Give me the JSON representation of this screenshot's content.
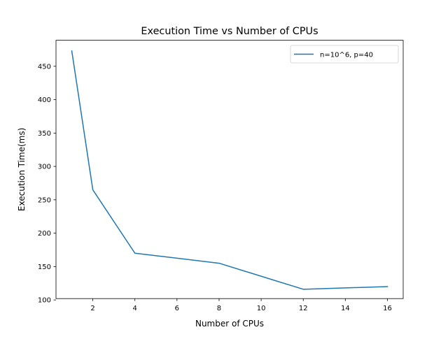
{
  "chart_data": {
    "type": "line",
    "title": "Execution Time vs Number of CPUs",
    "xlabel": "Number of CPUs",
    "ylabel": "Execution Time(ms)",
    "xlim": [
      0.25,
      16.75
    ],
    "ylim": [
      102,
      489
    ],
    "xticks": [
      2,
      4,
      6,
      8,
      10,
      12,
      14,
      16
    ],
    "yticks": [
      100,
      150,
      200,
      250,
      300,
      350,
      400,
      450
    ],
    "grid": false,
    "legend_position": "upper right",
    "series": [
      {
        "name": "n=10^6, p=40",
        "color": "#1f77b4",
        "x": [
          1,
          2,
          4,
          8,
          12,
          16
        ],
        "y": [
          473,
          265,
          170,
          155,
          116,
          120
        ]
      }
    ]
  }
}
